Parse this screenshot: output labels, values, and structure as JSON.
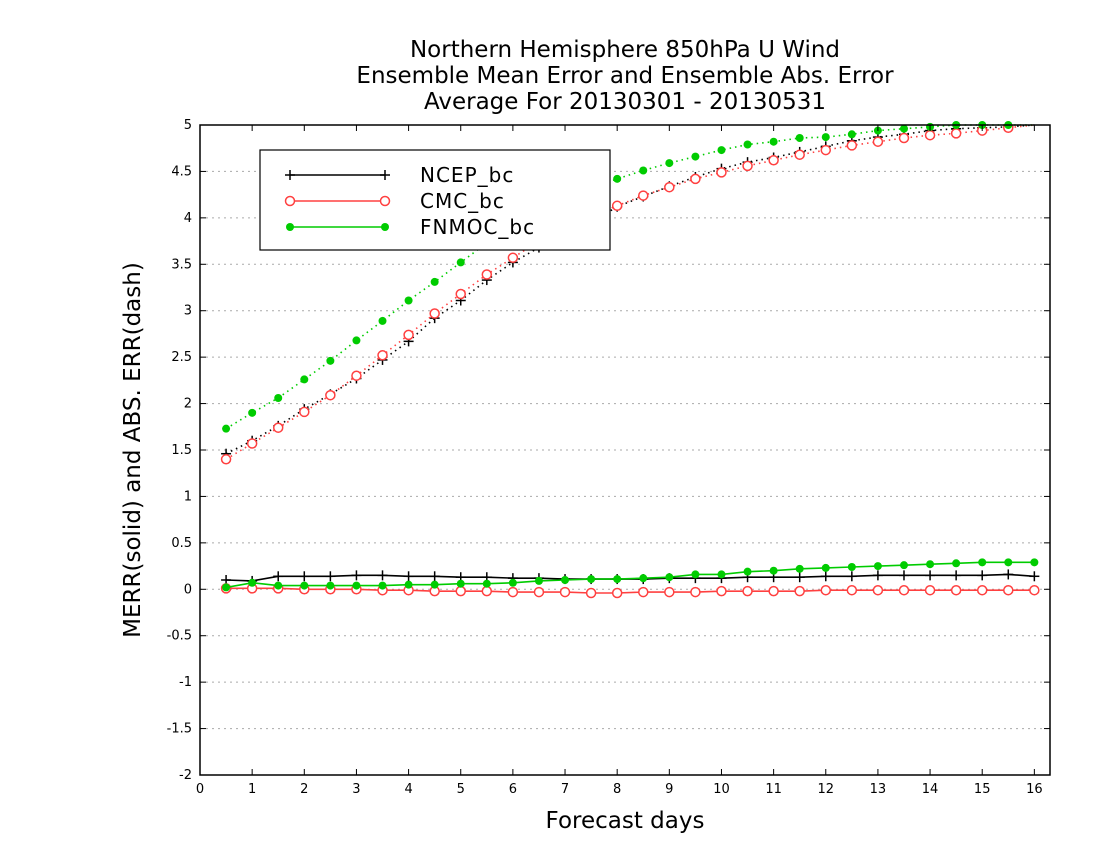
{
  "chart_data": {
    "type": "line",
    "title": [
      "Northern Hemisphere 850hPa U Wind",
      "Ensemble Mean Error and Ensemble Abs. Error",
      "Average For 20130301 - 20130531"
    ],
    "xlabel": "Forecast days",
    "ylabel": "MERR(solid) and ABS. ERR(dash)",
    "xlim": [
      0,
      16.3
    ],
    "ylim": [
      -2,
      5
    ],
    "xticks": [
      "0",
      "1",
      "2",
      "3",
      "4",
      "5",
      "6",
      "7",
      "8",
      "9",
      "10",
      "11",
      "12",
      "13",
      "14",
      "15",
      "16"
    ],
    "yticks": [
      "5",
      "4.5",
      "4",
      "3.5",
      "3",
      "2.5",
      "2",
      "1.5",
      "1",
      "0.5",
      "0",
      "-0.5",
      "-1",
      "-1.5",
      "-2"
    ],
    "grid": true,
    "legend": "top-left",
    "x": [
      0.5,
      1,
      1.5,
      2,
      2.5,
      3,
      3.5,
      4,
      4.5,
      5,
      5.5,
      6,
      6.5,
      7,
      7.5,
      8,
      8.5,
      9,
      9.5,
      10,
      10.5,
      11,
      11.5,
      12,
      12.5,
      13,
      13.5,
      14,
      14.5,
      15,
      15.5,
      16
    ],
    "series": [
      {
        "name": "NCEP_bc",
        "color": "#000000",
        "marker": "plus",
        "merr": [
          0.1,
          0.09,
          0.14,
          0.14,
          0.14,
          0.15,
          0.15,
          0.14,
          0.14,
          0.13,
          0.13,
          0.12,
          0.12,
          0.11,
          0.11,
          0.11,
          0.11,
          0.12,
          0.12,
          0.12,
          0.13,
          0.13,
          0.13,
          0.14,
          0.14,
          0.15,
          0.15,
          0.15,
          0.15,
          0.15,
          0.16,
          0.14
        ],
        "abserr": [
          1.46,
          1.6,
          1.76,
          1.94,
          2.1,
          2.27,
          2.47,
          2.67,
          2.92,
          3.11,
          3.33,
          3.52,
          3.68,
          3.82,
          3.95,
          4.12,
          4.23,
          4.34,
          4.44,
          4.53,
          4.6,
          4.65,
          4.71,
          4.77,
          4.83,
          4.87,
          4.9,
          4.94,
          4.96,
          4.97,
          4.98,
          5.0
        ]
      },
      {
        "name": "CMC_bc",
        "color": "#ff4040",
        "marker": "open-circle",
        "merr": [
          0.01,
          0.01,
          0.01,
          0.0,
          0.0,
          0.0,
          -0.01,
          -0.01,
          -0.02,
          -0.02,
          -0.02,
          -0.03,
          -0.03,
          -0.03,
          -0.04,
          -0.04,
          -0.03,
          -0.03,
          -0.03,
          -0.02,
          -0.02,
          -0.02,
          -0.02,
          -0.01,
          -0.01,
          -0.01,
          -0.01,
          -0.01,
          -0.01,
          -0.01,
          -0.01,
          -0.01
        ],
        "abserr": [
          1.4,
          1.57,
          1.74,
          1.91,
          2.09,
          2.3,
          2.52,
          2.74,
          2.97,
          3.18,
          3.39,
          3.57,
          3.75,
          3.9,
          4.02,
          4.13,
          4.24,
          4.33,
          4.42,
          4.49,
          4.56,
          4.62,
          4.68,
          4.73,
          4.78,
          4.82,
          4.86,
          4.89,
          4.91,
          4.94,
          4.97,
          5.0
        ]
      },
      {
        "name": "FNMOC_bc",
        "color": "#00cc00",
        "marker": "filled-circle",
        "merr": [
          0.02,
          0.07,
          0.04,
          0.04,
          0.04,
          0.04,
          0.04,
          0.05,
          0.05,
          0.06,
          0.06,
          0.07,
          0.09,
          0.1,
          0.11,
          0.11,
          0.12,
          0.13,
          0.16,
          0.16,
          0.19,
          0.2,
          0.22,
          0.23,
          0.24,
          0.25,
          0.26,
          0.27,
          0.28,
          0.29,
          0.29,
          0.29
        ],
        "abserr": [
          1.73,
          1.9,
          2.06,
          2.26,
          2.46,
          2.68,
          2.89,
          3.11,
          3.31,
          3.52,
          3.73,
          3.92,
          4.08,
          4.22,
          4.32,
          4.42,
          4.51,
          4.59,
          4.66,
          4.73,
          4.79,
          4.82,
          4.86,
          4.87,
          4.9,
          4.94,
          4.96,
          4.98,
          5.0,
          5.0,
          5.0,
          5.0
        ]
      }
    ]
  }
}
